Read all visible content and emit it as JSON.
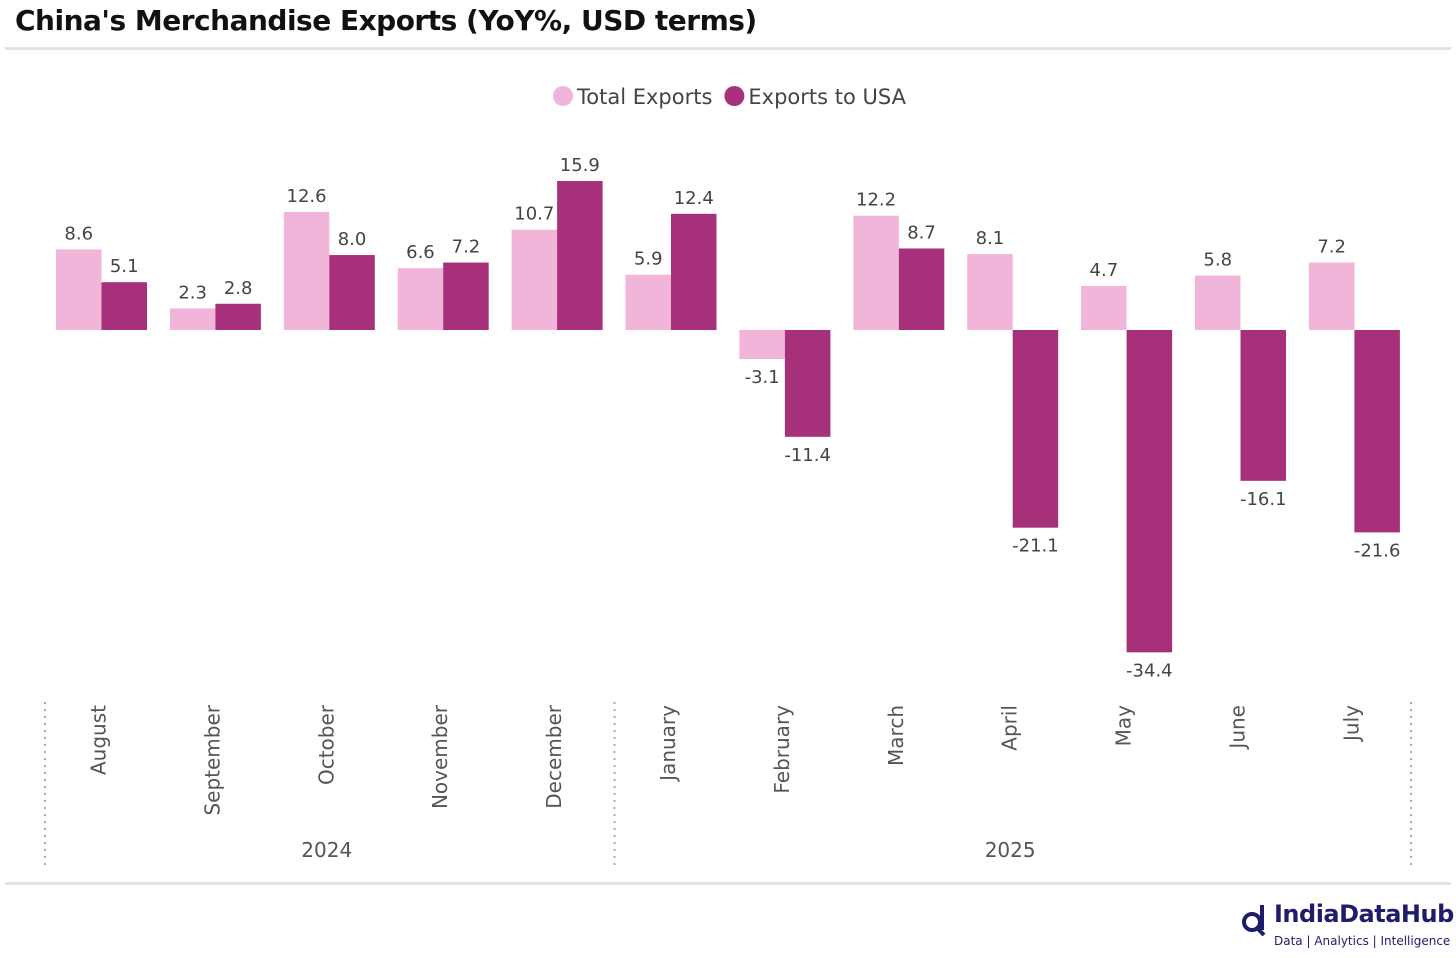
{
  "title": "China's Merchandise Exports (YoY%, USD terms)",
  "logo": {
    "name": "IndiaDataHub",
    "tagline": "Data | Analytics | Intelligence"
  },
  "colors": {
    "total": "#f2b5da",
    "usa": "#a6317a"
  },
  "chart_data": {
    "type": "bar",
    "title": "China's Merchandise Exports (YoY%, USD terms)",
    "categories": [
      "August",
      "September",
      "October",
      "November",
      "December",
      "January",
      "February",
      "March",
      "April",
      "May",
      "June",
      "July"
    ],
    "years": [
      {
        "label": "2024",
        "count": 5
      },
      {
        "label": "2025",
        "count": 7
      }
    ],
    "series": [
      {
        "name": "Total Exports",
        "values": [
          8.6,
          2.3,
          12.6,
          6.6,
          10.7,
          5.9,
          -3.1,
          12.2,
          8.1,
          4.7,
          5.8,
          7.2
        ]
      },
      {
        "name": "Exports to USA",
        "values": [
          5.1,
          2.8,
          8.0,
          7.2,
          15.9,
          12.4,
          -11.4,
          8.7,
          -21.1,
          -34.4,
          -16.1,
          -21.6
        ]
      }
    ],
    "legend_position": "top-center",
    "grid": false
  }
}
